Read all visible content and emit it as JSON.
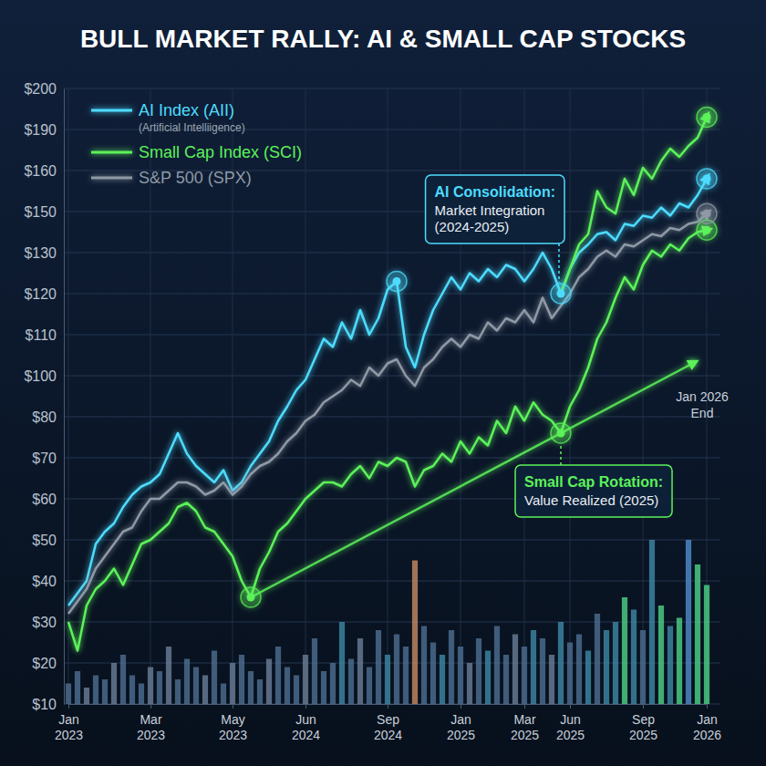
{
  "chart_data": {
    "type": "line",
    "title": "BULL MARKET RALLY: AI & SMALL CAP STOCKS",
    "categories": [
      "Jan 2023",
      null,
      null,
      null,
      null,
      null,
      null,
      null,
      null,
      "Mar 2023",
      null,
      null,
      null,
      null,
      null,
      null,
      null,
      null,
      "May 2023",
      null,
      null,
      null,
      null,
      null,
      null,
      null,
      "Jun 2024",
      null,
      null,
      null,
      null,
      null,
      null,
      null,
      null,
      "Sep 2024",
      null,
      null,
      null,
      null,
      null,
      null,
      null,
      "Jan 2025",
      null,
      null,
      null,
      null,
      null,
      null,
      "Mar 2025",
      null,
      null,
      null,
      null,
      "Jun 2025",
      null,
      null,
      null,
      null,
      null,
      null,
      null,
      "Sep 2025",
      null,
      null,
      null,
      null,
      null,
      null,
      "Jan 2026"
    ],
    "series": [
      {
        "name": "AI Index (AII)",
        "subtitle": "(Artificial Intelliigence)",
        "color": "#4ddcff",
        "values": [
          34,
          37,
          40,
          49,
          52,
          54,
          58,
          61,
          63,
          64,
          66,
          71,
          76,
          71,
          68,
          66,
          64,
          67,
          62,
          64,
          68,
          71,
          74,
          79,
          85,
          93,
          98,
          104,
          109,
          107,
          113,
          109,
          116,
          110,
          114,
          121,
          123,
          107,
          102,
          110,
          116,
          120,
          124,
          121,
          125,
          123,
          126,
          124,
          127,
          126,
          123,
          126,
          130,
          126,
          120,
          126,
          130,
          134,
          139,
          140,
          136,
          144,
          143,
          148,
          147,
          151,
          148,
          152,
          151,
          154,
          158
        ]
      },
      {
        "name": "Small Cap Index (SCI)",
        "color": "#5cf25a",
        "values": [
          30,
          23,
          34,
          38,
          40,
          43,
          39,
          44,
          49,
          50,
          52,
          54,
          58,
          59,
          57,
          53,
          52,
          49,
          46,
          40,
          36,
          43,
          47,
          52,
          54,
          57,
          60,
          62,
          64,
          64,
          63,
          66,
          68,
          65,
          69,
          68,
          70,
          69,
          63,
          67,
          68,
          71,
          69,
          74,
          71,
          75,
          73,
          79,
          76,
          85,
          79,
          87,
          81,
          79,
          76,
          85,
          93,
          102,
          109,
          113,
          119,
          124,
          121,
          127,
          131,
          129,
          134,
          131,
          137,
          140,
          141
        ]
      },
      {
        "name": "S&P 500 (SPX)",
        "color": "#8f99a6",
        "values": [
          32,
          35,
          38,
          43,
          46,
          49,
          52,
          53,
          57,
          60,
          60,
          62,
          64,
          64,
          63,
          61,
          62,
          64,
          61,
          63,
          66,
          68,
          69,
          71,
          74,
          76,
          79,
          81,
          87,
          90,
          93,
          98,
          95,
          102,
          100,
          103,
          104,
          100,
          95,
          102,
          104,
          107,
          109,
          107,
          110,
          109,
          113,
          111,
          114,
          113,
          116,
          113,
          119,
          114,
          117,
          120,
          124,
          126,
          129,
          131,
          129,
          134,
          133,
          136,
          139,
          138,
          142,
          141,
          144,
          145,
          149
        ]
      },
      {
        "color": "#5cf25a",
        "values": [
          null,
          null,
          null,
          null,
          null,
          null,
          null,
          null,
          null,
          null,
          null,
          null,
          null,
          null,
          null,
          null,
          null,
          null,
          null,
          null,
          null,
          null,
          null,
          null,
          null,
          null,
          null,
          null,
          null,
          null,
          null,
          null,
          null,
          null,
          null,
          null,
          null,
          null,
          null,
          null,
          null,
          null,
          null,
          null,
          null,
          null,
          null,
          null,
          null,
          null,
          null,
          null,
          null,
          null,
          120,
          126,
          134,
          139,
          155,
          151,
          149,
          158,
          154,
          162,
          158,
          167,
          176,
          170,
          178,
          184,
          193
        ]
      },
      {
        "type": "bar",
        "colors": [
          "#4f6f92",
          "#4f6f92",
          "#6b7f99",
          "#4f6f92",
          "#4f6f92",
          "#6b7f99",
          "#4f6f92",
          "#4f6f92",
          "#4f6f92",
          "#6b7f99",
          "#4f6f92",
          "#6b7f99",
          "#4f6f92",
          "#4f6f92",
          "#4f6f92",
          "#6b7f99",
          "#4f6f92",
          "#4f6f92",
          "#6b7f99",
          "#4f6f92",
          "#4f6f92",
          "#4f6f92",
          "#6b7f99",
          "#4f6f92",
          "#4f6f92",
          "#4f6f92",
          "#6b7f99",
          "#4f6f92",
          "#4f6f92",
          "#4f6f92",
          "#3f8aa6",
          "#4f6f92",
          "#6b7f99",
          "#4f6f92",
          "#4f6f92",
          "#3f8aa6",
          "#4f6f92",
          "#4f6f92",
          "#c98b63",
          "#4f6f92",
          "#4f6f92",
          "#3f8aa6",
          "#4f6f92",
          "#4f6f92",
          "#6b7f99",
          "#4f6f92",
          "#3f8aa6",
          "#4f6f92",
          "#4f6f92",
          "#6b7f99",
          "#4f6f92",
          "#3f8aa6",
          "#4f6f92",
          "#6b7f99",
          "#3f8aa6",
          "#4f6f92",
          "#4f6f92",
          "#3f8aa6",
          "#4f6f92",
          "#3f8aa6",
          "#3f8aa6",
          "#4fd486",
          "#3f8aa6",
          "#4f6f92",
          "#3f8aa6",
          "#4fd486",
          "#3f8aa6",
          "#4fd486",
          "#4f8fd0",
          "#4fd486",
          "#4fd486"
        ],
        "values": [
          15,
          18,
          14,
          17,
          16,
          20,
          22,
          17,
          15,
          19,
          18,
          24,
          16,
          21,
          19,
          17,
          23,
          15,
          20,
          22,
          18,
          16,
          21,
          24,
          19,
          17,
          22,
          26,
          18,
          20,
          30,
          21,
          26,
          19,
          28,
          22,
          27,
          24,
          45,
          29,
          25,
          22,
          28,
          24,
          20,
          26,
          23,
          29,
          22,
          27,
          24,
          28,
          26,
          22,
          30,
          25,
          27,
          23,
          32,
          28,
          30,
          36,
          33,
          28,
          50,
          34,
          29,
          31,
          50,
          44,
          39
        ]
      }
    ],
    "ylim": [
      10,
      200
    ],
    "yticks": [
      {
        "value": 10,
        "label": "$10"
      },
      {
        "value": 20,
        "label": "$20"
      },
      {
        "value": 30,
        "label": "$30"
      },
      {
        "value": 40,
        "label": "$40"
      },
      {
        "value": 50,
        "label": "$50"
      },
      {
        "value": 60,
        "label": "$60"
      },
      {
        "value": 70,
        "label": "$70"
      },
      {
        "value": 80,
        "label": "$80"
      },
      {
        "value": 100,
        "label": "$100"
      },
      {
        "value": 110,
        "label": "$110"
      },
      {
        "value": 120,
        "label": "$120"
      },
      {
        "value": 130,
        "label": "$130"
      },
      {
        "value": 150,
        "label": "$150"
      },
      {
        "value": 160,
        "label": "$160"
      },
      {
        "value": 190,
        "label": "$190"
      },
      {
        "value": 200,
        "label": "$200"
      }
    ],
    "grid": true,
    "legend": "top-left",
    "highlights": [
      {
        "series": 0,
        "index": 36
      },
      {
        "series": 1,
        "index": 20
      }
    ],
    "annotations": [
      {
        "title": "AI Consolidation:",
        "text": [
          "Market Integration",
          "(2024-2025)"
        ],
        "series": 0,
        "index": 54
      },
      {
        "title": "Small Cap Rotation:",
        "text": [
          "Value Realized (2025)"
        ],
        "series": 1,
        "index": 54
      },
      {
        "text": [
          "Jan 2026",
          "End"
        ]
      }
    ]
  }
}
